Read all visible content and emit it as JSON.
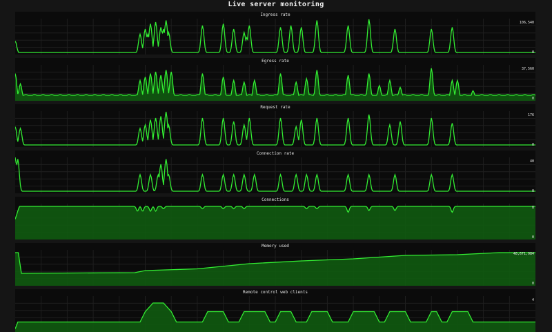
{
  "page": {
    "title": "Live server monitoring"
  },
  "colors": {
    "background": "#151515",
    "panel": "#0b0b0b",
    "line": "#33ee33",
    "fill": "#0f5a0f",
    "grid": "#1f1f1f"
  },
  "panels": [
    {
      "title": "Ingress rate",
      "max_label": "106,540",
      "min_label": "0"
    },
    {
      "title": "Egress rate",
      "max_label": "37,560",
      "min_label": "0"
    },
    {
      "title": "Request rate",
      "max_label": "176",
      "min_label": "0"
    },
    {
      "title": "Connection rate",
      "max_label": "40",
      "min_label": "0"
    },
    {
      "title": "Connections",
      "max_label": "8",
      "min_label": "0"
    },
    {
      "title": "Memory used",
      "max_label": "48,671,984",
      "min_label": "0"
    },
    {
      "title": "Remote control web clients",
      "max_label": "4",
      "min_label": ""
    }
  ],
  "chart_data": [
    {
      "type": "area",
      "title": "Ingress rate",
      "ylim": [
        0,
        106540
      ],
      "fill": false,
      "spikes": [
        [
          0.0,
          0.35
        ],
        [
          0.24,
          0.55
        ],
        [
          0.25,
          0.7
        ],
        [
          0.255,
          0.55
        ],
        [
          0.26,
          0.85
        ],
        [
          0.27,
          0.9
        ],
        [
          0.28,
          0.75
        ],
        [
          0.285,
          0.7
        ],
        [
          0.29,
          0.95
        ],
        [
          0.295,
          0.6
        ],
        [
          0.36,
          0.8
        ],
        [
          0.4,
          0.85
        ],
        [
          0.42,
          0.7
        ],
        [
          0.44,
          0.6
        ],
        [
          0.445,
          0.45
        ],
        [
          0.45,
          0.8
        ],
        [
          0.51,
          0.75
        ],
        [
          0.53,
          0.8
        ],
        [
          0.55,
          0.75
        ],
        [
          0.58,
          0.95
        ],
        [
          0.64,
          0.8
        ],
        [
          0.68,
          0.98
        ],
        [
          0.73,
          0.7
        ],
        [
          0.8,
          0.7
        ],
        [
          0.84,
          0.75
        ]
      ],
      "baseline": 0.02
    },
    {
      "type": "area",
      "title": "Egress rate",
      "ylim": [
        0,
        37560
      ],
      "fill": true,
      "spikes": [
        [
          0.0,
          0.75
        ],
        [
          0.01,
          0.45
        ],
        [
          0.24,
          0.55
        ],
        [
          0.25,
          0.65
        ],
        [
          0.26,
          0.75
        ],
        [
          0.27,
          0.8
        ],
        [
          0.28,
          0.7
        ],
        [
          0.29,
          0.85
        ],
        [
          0.3,
          0.8
        ],
        [
          0.36,
          0.75
        ],
        [
          0.4,
          0.65
        ],
        [
          0.42,
          0.55
        ],
        [
          0.44,
          0.5
        ],
        [
          0.46,
          0.55
        ],
        [
          0.51,
          0.75
        ],
        [
          0.54,
          0.5
        ],
        [
          0.56,
          0.6
        ],
        [
          0.58,
          0.85
        ],
        [
          0.64,
          0.7
        ],
        [
          0.68,
          0.75
        ],
        [
          0.7,
          0.4
        ],
        [
          0.72,
          0.55
        ],
        [
          0.74,
          0.35
        ],
        [
          0.8,
          0.9
        ],
        [
          0.84,
          0.55
        ],
        [
          0.85,
          0.55
        ],
        [
          0.88,
          0.25
        ]
      ],
      "baseline": 0.12
    },
    {
      "type": "line",
      "title": "Request rate",
      "ylim": [
        0,
        176
      ],
      "fill": false,
      "spikes": [
        [
          0.0,
          0.55
        ],
        [
          0.01,
          0.5
        ],
        [
          0.24,
          0.5
        ],
        [
          0.25,
          0.6
        ],
        [
          0.26,
          0.75
        ],
        [
          0.27,
          0.8
        ],
        [
          0.28,
          0.85
        ],
        [
          0.29,
          0.98
        ],
        [
          0.295,
          0.6
        ],
        [
          0.36,
          0.8
        ],
        [
          0.4,
          0.8
        ],
        [
          0.42,
          0.7
        ],
        [
          0.44,
          0.6
        ],
        [
          0.45,
          0.8
        ],
        [
          0.51,
          0.8
        ],
        [
          0.54,
          0.55
        ],
        [
          0.55,
          0.75
        ],
        [
          0.58,
          0.8
        ],
        [
          0.64,
          0.8
        ],
        [
          0.68,
          0.9
        ],
        [
          0.72,
          0.6
        ],
        [
          0.74,
          0.7
        ],
        [
          0.8,
          0.8
        ],
        [
          0.84,
          0.65
        ]
      ],
      "baseline": 0.02
    },
    {
      "type": "line",
      "title": "Connection rate",
      "ylim": [
        0,
        40
      ],
      "fill": false,
      "spikes": [
        [
          0.0,
          1.0
        ],
        [
          0.005,
          0.95
        ],
        [
          0.24,
          0.5
        ],
        [
          0.26,
          0.5
        ],
        [
          0.275,
          0.5
        ],
        [
          0.28,
          0.8
        ],
        [
          0.29,
          0.95
        ],
        [
          0.295,
          0.5
        ],
        [
          0.36,
          0.5
        ],
        [
          0.4,
          0.5
        ],
        [
          0.42,
          0.5
        ],
        [
          0.44,
          0.5
        ],
        [
          0.46,
          0.5
        ],
        [
          0.51,
          0.5
        ],
        [
          0.54,
          0.5
        ],
        [
          0.56,
          0.5
        ],
        [
          0.58,
          0.5
        ],
        [
          0.64,
          0.5
        ],
        [
          0.68,
          0.5
        ],
        [
          0.73,
          0.5
        ],
        [
          0.8,
          0.5
        ],
        [
          0.84,
          0.5
        ]
      ],
      "baseline": 0.02
    },
    {
      "type": "area",
      "title": "Connections",
      "ylim": [
        0,
        8
      ],
      "fill": true,
      "step": [
        [
          0.0,
          0.55
        ],
        [
          0.008,
          0.92
        ],
        [
          1.0,
          0.92
        ]
      ],
      "dips": [
        [
          0.235,
          0.78
        ],
        [
          0.245,
          0.78
        ],
        [
          0.26,
          0.78
        ],
        [
          0.27,
          0.78
        ],
        [
          0.285,
          0.85
        ],
        [
          0.36,
          0.85
        ],
        [
          0.4,
          0.85
        ],
        [
          0.42,
          0.85
        ],
        [
          0.44,
          0.85
        ],
        [
          0.56,
          0.85
        ],
        [
          0.58,
          0.85
        ],
        [
          0.64,
          0.75
        ],
        [
          0.68,
          0.8
        ],
        [
          0.73,
          0.8
        ],
        [
          0.84,
          0.75
        ]
      ]
    },
    {
      "type": "area",
      "title": "Memory used",
      "ylim": [
        0,
        48671984
      ],
      "fill": true,
      "step": [
        [
          0.0,
          0.92
        ],
        [
          0.006,
          0.92
        ],
        [
          0.012,
          0.32
        ],
        [
          0.23,
          0.34
        ],
        [
          0.25,
          0.4
        ],
        [
          0.35,
          0.45
        ],
        [
          0.45,
          0.6
        ],
        [
          0.55,
          0.68
        ],
        [
          0.65,
          0.74
        ],
        [
          0.75,
          0.84
        ],
        [
          0.85,
          0.86
        ],
        [
          0.93,
          0.92
        ],
        [
          1.0,
          0.92
        ]
      ]
    },
    {
      "type": "area",
      "title": "Remote control web clients",
      "ylim": [
        0,
        4
      ],
      "fill": true,
      "step": [
        [
          0.0,
          0.05
        ],
        [
          0.005,
          0.25
        ],
        [
          0.24,
          0.25
        ],
        [
          0.25,
          0.55
        ],
        [
          0.265,
          0.8
        ],
        [
          0.275,
          0.8
        ],
        [
          0.285,
          0.8
        ],
        [
          0.3,
          0.55
        ],
        [
          0.31,
          0.25
        ],
        [
          0.36,
          0.25
        ],
        [
          0.37,
          0.55
        ],
        [
          0.4,
          0.55
        ],
        [
          0.41,
          0.25
        ],
        [
          0.43,
          0.25
        ],
        [
          0.44,
          0.55
        ],
        [
          0.48,
          0.55
        ],
        [
          0.49,
          0.25
        ],
        [
          0.5,
          0.25
        ],
        [
          0.51,
          0.55
        ],
        [
          0.53,
          0.55
        ],
        [
          0.54,
          0.25
        ],
        [
          0.56,
          0.25
        ],
        [
          0.57,
          0.55
        ],
        [
          0.6,
          0.55
        ],
        [
          0.61,
          0.25
        ],
        [
          0.64,
          0.25
        ],
        [
          0.65,
          0.55
        ],
        [
          0.69,
          0.55
        ],
        [
          0.7,
          0.25
        ],
        [
          0.71,
          0.25
        ],
        [
          0.72,
          0.55
        ],
        [
          0.75,
          0.55
        ],
        [
          0.76,
          0.25
        ],
        [
          0.79,
          0.25
        ],
        [
          0.8,
          0.55
        ],
        [
          0.81,
          0.55
        ],
        [
          0.82,
          0.25
        ],
        [
          0.83,
          0.25
        ],
        [
          0.84,
          0.55
        ],
        [
          0.87,
          0.55
        ],
        [
          0.88,
          0.25
        ],
        [
          1.0,
          0.25
        ]
      ]
    }
  ]
}
